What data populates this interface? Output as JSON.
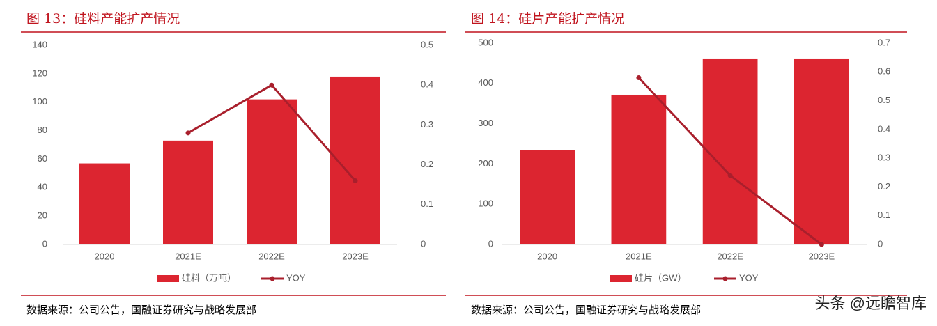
{
  "chart_data": [
    {
      "type": "bar",
      "title": "图 13：硅料产能扩产情况",
      "categories": [
        "2020",
        "2021E",
        "2022E",
        "2023E"
      ],
      "series": [
        {
          "name": "硅料（万吨）",
          "type": "bar",
          "color": "#dc2530",
          "values": [
            57,
            73,
            102,
            118
          ]
        },
        {
          "name": "YOY",
          "type": "line",
          "axis": "y2",
          "color": "#a91f2c",
          "values": [
            null,
            0.28,
            0.4,
            0.16
          ]
        }
      ],
      "ylim": [
        0,
        140
      ],
      "yticks": [
        0,
        20,
        40,
        60,
        80,
        100,
        120,
        140
      ],
      "y2lim": [
        0,
        0.5
      ],
      "y2ticks": [
        0,
        0.1,
        0.2,
        0.3,
        0.4,
        0.5
      ],
      "source": "数据来源：公司公告，国融证券研究与战略发展部"
    },
    {
      "type": "bar",
      "title": "图 14：硅片产能扩产情况",
      "categories": [
        "2020",
        "2021E",
        "2022E",
        "2023E"
      ],
      "series": [
        {
          "name": "硅片（GW）",
          "type": "bar",
          "color": "#dc2530",
          "values": [
            235,
            372,
            462,
            462
          ]
        },
        {
          "name": "YOY",
          "type": "line",
          "axis": "y2",
          "color": "#a91f2c",
          "values": [
            null,
            0.58,
            0.24,
            0
          ]
        }
      ],
      "ylim": [
        0,
        500
      ],
      "yticks": [
        0,
        100,
        200,
        300,
        400,
        500
      ],
      "y2lim": [
        0,
        0.7
      ],
      "y2ticks": [
        0,
        0.1,
        0.2,
        0.3,
        0.4,
        0.5,
        0.6,
        0.7
      ],
      "source": "数据来源：公司公告，国融证券研究与战略发展部"
    }
  ],
  "watermark": "头条 @远瞻智库"
}
